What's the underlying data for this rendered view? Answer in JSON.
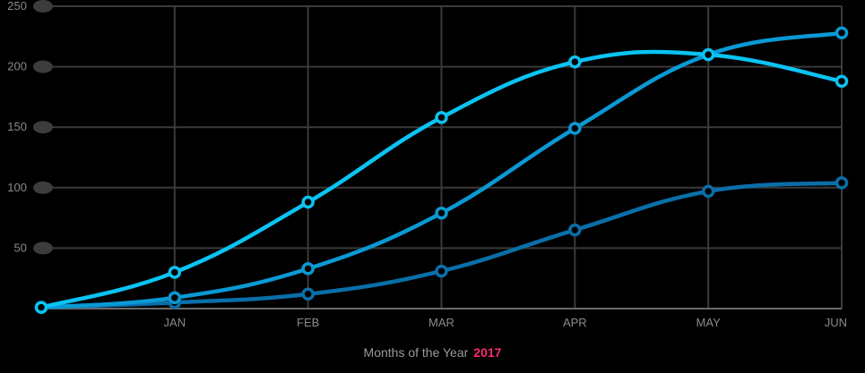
{
  "chart_data": {
    "type": "line",
    "categories": [
      "",
      "JAN",
      "FEB",
      "MAR",
      "APR",
      "MAY",
      "JUN"
    ],
    "yticks": [
      250,
      200,
      150,
      100,
      50
    ],
    "ylim": [
      0,
      250
    ],
    "grid": true,
    "series": [
      {
        "values": [
          1,
          5,
          12,
          31,
          65,
          97,
          104
        ],
        "color": "#0a6fa8"
      },
      {
        "values": [
          1,
          9,
          33,
          79,
          149,
          210,
          228
        ],
        "color": "#0a99d4"
      },
      {
        "values": [
          1,
          30,
          88,
          158,
          204,
          210,
          188
        ],
        "color": "#0ac3f2"
      }
    ],
    "xlabel": "Months of the Year",
    "xlabel_highlight": "2017",
    "colors": {
      "background": "#000000",
      "grid": "#3a3a3a",
      "axis": "#6a6a6a",
      "ytick_dot": "#3c3c3c",
      "highlight": "#ff2a6d"
    }
  }
}
